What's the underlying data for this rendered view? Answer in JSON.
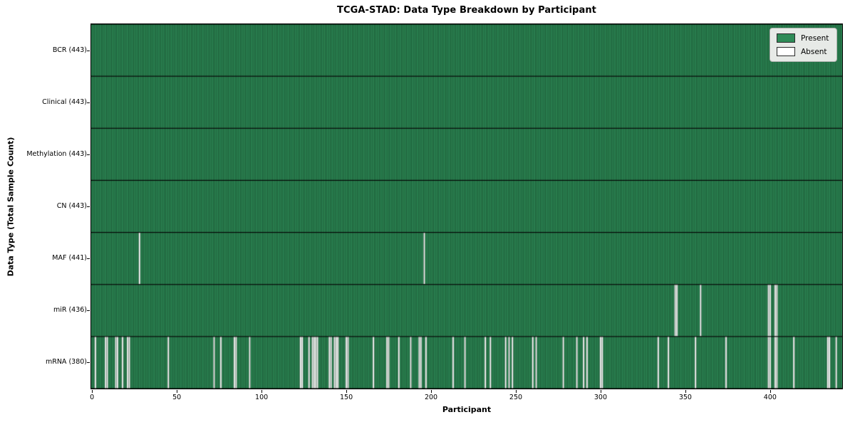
{
  "title": "TCGA-STAD: Data Type Breakdown by Participant",
  "xlabel": "Participant",
  "ylabel": "Data Type (Total Sample Count)",
  "colors": {
    "present": "#2e8b57",
    "absent": "#ffffff",
    "bar_edge": "rgba(6,28,15,0.68)",
    "row_divider": "rgba(0,0,0,0.95)",
    "legend_bg": "#e7eae7"
  },
  "chart_data": {
    "type": "heatmap",
    "title": "TCGA-STAD: Data Type Breakdown by Participant",
    "xlabel": "Participant",
    "ylabel": "Data Type (Total Sample Count)",
    "n_participants": 443,
    "xlim": [
      0,
      443
    ],
    "x_ticks": [
      0,
      50,
      100,
      150,
      200,
      250,
      300,
      350,
      400
    ],
    "grid": false,
    "legend_position": "upper right",
    "legend": [
      {
        "label": "Present",
        "color": "#2e8b57"
      },
      {
        "label": "Absent",
        "color": "#ffffff"
      }
    ],
    "rows": [
      {
        "label": "BCR (443)",
        "data_type": "BCR",
        "present_count": 443,
        "absent_participants": []
      },
      {
        "label": "Clinical (443)",
        "data_type": "Clinical",
        "present_count": 443,
        "absent_participants": []
      },
      {
        "label": "Methylation (443)",
        "data_type": "Methylation",
        "present_count": 443,
        "absent_participants": []
      },
      {
        "label": "CN (443)",
        "data_type": "CN",
        "present_count": 443,
        "absent_participants": []
      },
      {
        "label": "MAF (441)",
        "data_type": "MAF",
        "present_count": 441,
        "absent_participants": [
          28,
          196
        ]
      },
      {
        "label": "miR (436)",
        "data_type": "miR",
        "present_count": 436,
        "absent_participants": [
          344,
          345,
          359,
          399,
          400,
          403,
          404
        ]
      },
      {
        "label": "mRNA (380)",
        "data_type": "mRNA",
        "present_count": 380,
        "absent_participants": [
          2,
          8,
          9,
          14,
          15,
          18,
          21,
          22,
          45,
          72,
          76,
          84,
          85,
          93,
          123,
          124,
          128,
          130,
          131,
          132,
          133,
          140,
          141,
          143,
          144,
          145,
          150,
          151,
          166,
          174,
          175,
          181,
          188,
          193,
          194,
          197,
          213,
          220,
          232,
          235,
          244,
          246,
          248,
          260,
          262,
          278,
          286,
          290,
          292,
          300,
          301,
          334,
          340,
          356,
          374,
          399,
          400,
          403,
          404,
          414,
          434,
          435,
          439
        ]
      }
    ]
  }
}
